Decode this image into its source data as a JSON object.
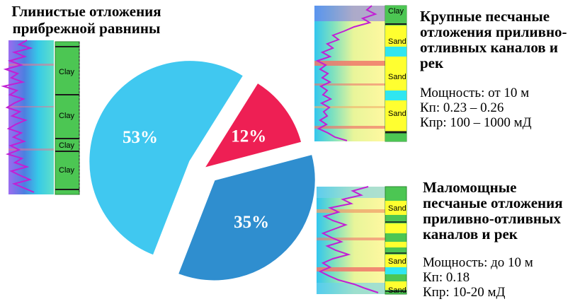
{
  "titles": {
    "clay": [
      "Глинистые отложения",
      "прибрежной равнины"
    ],
    "coarse": [
      "Крупные песчаные",
      "отложения приливно-",
      "отливных каналов и",
      "рек"
    ],
    "thin": [
      "Маломощные",
      "песчаные отложения",
      "приливно-отливных",
      "каналов и рек"
    ]
  },
  "properties": {
    "coarse": [
      "Мощность: от 10 м",
      "Кп: 0.23 – 0.26",
      "Кпр: 100 – 1000 мД"
    ],
    "thin": [
      "Мощность: до 10 м",
      "Кп: 0.18",
      "Кпр: 10-20 мД"
    ]
  },
  "logs": {
    "clay": [
      "Clay",
      "Clay",
      "Clay",
      "Clay"
    ],
    "coarse": [
      "Clay",
      "Sand",
      "Sand",
      "Sand"
    ],
    "thin": [
      "Sand",
      "Sand",
      "Sand"
    ]
  },
  "chart_data": {
    "type": "pie",
    "categories": [
      "Глинистые отложения прибрежной равнины",
      "Крупные песчаные отложения приливно-отливных каналов и рек",
      "Маломощные песчаные отложения приливно-отливных каналов и рек"
    ],
    "values": [
      53,
      12,
      35
    ],
    "labels": [
      "53%",
      "12%",
      "35%"
    ],
    "colors": [
      "#40c8f0",
      "#ee1f54",
      "#2f8ecf"
    ]
  }
}
